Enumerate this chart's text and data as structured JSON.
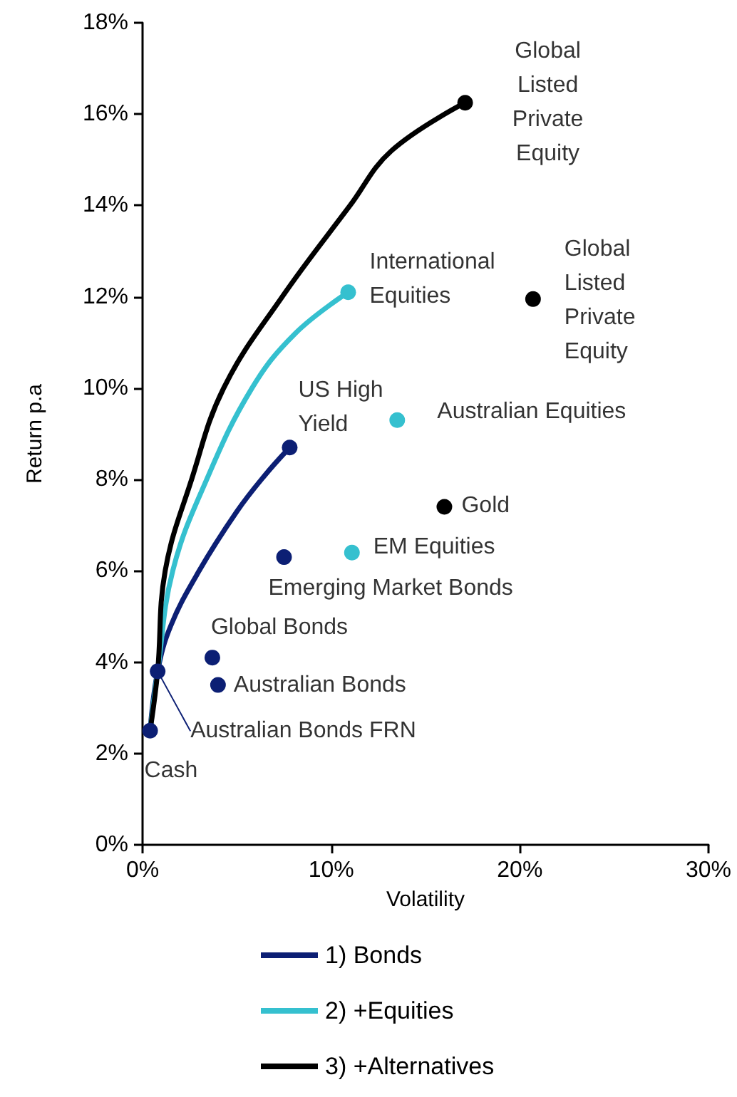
{
  "chart_data": {
    "type": "line",
    "xlabel": "Volatility",
    "ylabel": "Return p.a",
    "xlim": [
      0,
      30
    ],
    "xticks": [
      {
        "value": 0,
        "label": "0%"
      },
      {
        "value": 10,
        "label": "10%"
      },
      {
        "value": 20,
        "label": "20%"
      },
      {
        "value": 30,
        "label": "30%"
      }
    ],
    "ylim": [
      0,
      18
    ],
    "yticks": [
      {
        "value": 0,
        "label": "0%"
      },
      {
        "value": 2,
        "label": "2%"
      },
      {
        "value": 4,
        "label": "4%"
      },
      {
        "value": 6,
        "label": "6%"
      },
      {
        "value": 8,
        "label": "8%"
      },
      {
        "value": 10,
        "label": "10%"
      },
      {
        "value": 12,
        "label": "12%"
      },
      {
        "value": 14,
        "label": "14%"
      },
      {
        "value": 16,
        "label": "16%"
      },
      {
        "value": 18,
        "label": "18%"
      }
    ],
    "grid": false,
    "legend": "bottom",
    "marker": "none",
    "series": [
      {
        "name": "1) Bonds",
        "color": "#0c1f74",
        "x": [
          0.4,
          0.8,
          1.5,
          3,
          5,
          6.5,
          7.8
        ],
        "values": [
          2.5,
          3.8,
          4.8,
          6,
          7.3,
          8.1,
          8.7
        ]
      },
      {
        "name": "2) +Equities",
        "color": "#35c0cf",
        "x": [
          0.4,
          0.8,
          1.6,
          3.4,
          5.8,
          8.1,
          10.9
        ],
        "values": [
          2.5,
          3.8,
          6,
          8,
          10,
          11.2,
          12.1
        ]
      },
      {
        "name": "3) +Alternatives",
        "color": "#000000",
        "x": [
          0.4,
          0.8,
          1.2,
          2.6,
          4.3,
          7.4,
          11,
          13.2,
          17.1
        ],
        "values": [
          2.5,
          3.8,
          6,
          8,
          10,
          12,
          14,
          15.2,
          16.25
        ]
      },
      {
        "type": "scatter",
        "marker": "circle",
        "color": "#0c1f74",
        "x": [
          0.4,
          0.8,
          3.7,
          4.0,
          7.5,
          7.8
        ],
        "values": [
          2.5,
          3.8,
          4.1,
          3.5,
          6.3,
          8.7
        ]
      },
      {
        "type": "scatter",
        "marker": "circle",
        "color": "#35c0cf",
        "x": [
          10.9,
          13.5,
          11.1
        ],
        "values": [
          12.1,
          9.3,
          6.4
        ]
      },
      {
        "type": "scatter",
        "marker": "circle",
        "color": "#000000",
        "x": [
          16.0,
          20.7,
          17.1
        ],
        "values": [
          7.4,
          11.95,
          16.25
        ]
      }
    ],
    "annotations": [
      {
        "text": "Cash",
        "x": 0.4,
        "y": 2.5
      },
      {
        "text": "Australian Bonds FRN",
        "x": 0.8,
        "y": 3.8
      },
      {
        "text": "Global Bonds",
        "x": 3.7,
        "y": 4.1
      },
      {
        "text": "Australian Bonds",
        "x": 4.0,
        "y": 3.5
      },
      {
        "text": "Emerging Market Bonds",
        "x": 7.5,
        "y": 6.3
      },
      {
        "text": "US High\nYield",
        "x": 7.8,
        "y": 8.7
      },
      {
        "text": "International\nEquities",
        "x": 10.9,
        "y": 12.1
      },
      {
        "text": "Australian Equities",
        "x": 13.5,
        "y": 9.3
      },
      {
        "text": "EM Equities",
        "x": 11.1,
        "y": 6.4
      },
      {
        "text": "Gold",
        "x": 16.0,
        "y": 7.4
      },
      {
        "text": "Global\nListed\nPrivate\nEquity",
        "x": 20.7,
        "y": 11.95
      },
      {
        "text": "Global\nListed\nPrivate\nEquity",
        "x": 17.1,
        "y": 16.25
      }
    ]
  }
}
